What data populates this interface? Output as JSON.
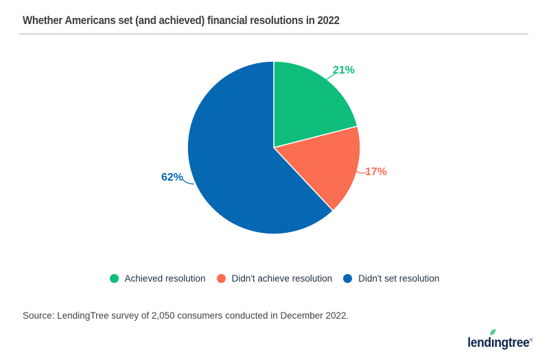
{
  "chart_data": {
    "type": "pie",
    "title": "Whether Americans set (and achieved) financial resolutions in 2022",
    "categories": [
      "Achieved resolution",
      "Didn't achieve resolution",
      "Didn't set resolution"
    ],
    "values": [
      21,
      17,
      62
    ],
    "labels": [
      "21%",
      "17%",
      "62%"
    ],
    "colors": [
      "#0fbe7b",
      "#fc6e52",
      "#0667b2"
    ],
    "start_angle_deg": -90,
    "direction": "clockwise",
    "legend_position": "bottom",
    "slice_separator_color": "#ffffff",
    "label_style": "outside-with-leader-lines"
  },
  "footer": {
    "source": "Source: LendingTree survey of 2,050 consumers conducted in December 2022.",
    "logo": {
      "name": "lendingtree",
      "part1": "lend",
      "dotless_i": "ı",
      "part2": "ngtree",
      "registered": "®",
      "navy": "#08244c",
      "leaf_green": "#2cbe6e"
    }
  },
  "style": {
    "title_color": "#3d3d3f",
    "divider_color": "#dedede",
    "legend_text_color": "#233342",
    "source_text_color": "#414141",
    "background": "#ffffff"
  }
}
